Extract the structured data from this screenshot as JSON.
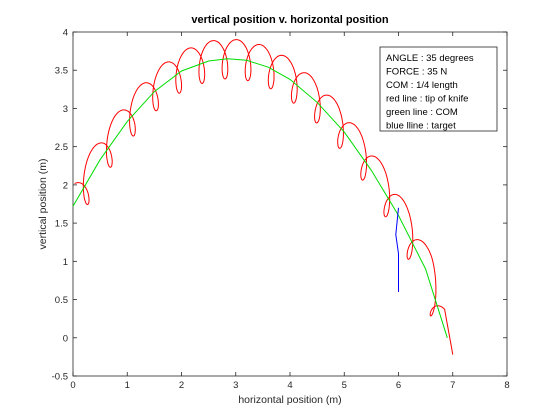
{
  "chart_data": {
    "type": "line",
    "title": "vertical position v. horizontal position",
    "xlabel": "horizontal position (m)",
    "ylabel": "vertical position (m)",
    "xlim": [
      0,
      8
    ],
    "ylim": [
      -0.5,
      4
    ],
    "xticks": [
      "0",
      "1",
      "2",
      "3",
      "4",
      "5",
      "6",
      "7",
      "8"
    ],
    "yticks": [
      "-0.5",
      "0",
      "0.5",
      "1",
      "1.5",
      "2",
      "2.5",
      "3",
      "3.5",
      "4"
    ],
    "grid": false,
    "legend_position": "top-right",
    "annotation_lines": [
      "ANGLE : 35 degrees",
      "FORCE : 35 N",
      "COM : 1/4 length",
      "red line : tip of knife",
      "green  line : COM",
      "blue lline : target"
    ],
    "series": [
      {
        "color": "#00dd00",
        "description_key": "com",
        "x": [
          0.0,
          0.5,
          1.0,
          1.5,
          2.0,
          2.5,
          2.85,
          3.2,
          3.6,
          4.0,
          4.5,
          5.0,
          5.5,
          6.0,
          6.5,
          6.9
        ],
        "y": [
          1.72,
          2.33,
          2.83,
          3.22,
          3.49,
          3.62,
          3.65,
          3.63,
          3.54,
          3.38,
          3.08,
          2.69,
          2.19,
          1.6,
          0.9,
          0.0
        ]
      },
      {
        "color": "#ff0000",
        "description_key": "tip",
        "loops": 16,
        "start": [
          0.27,
          1.7
        ],
        "end": [
          7.0,
          -0.22
        ]
      },
      {
        "color": "#0000ff",
        "description_key": "target",
        "x": [
          6.0,
          6.0,
          5.95,
          6.0
        ],
        "y": [
          0.6,
          1.1,
          1.35,
          1.7
        ]
      }
    ]
  }
}
